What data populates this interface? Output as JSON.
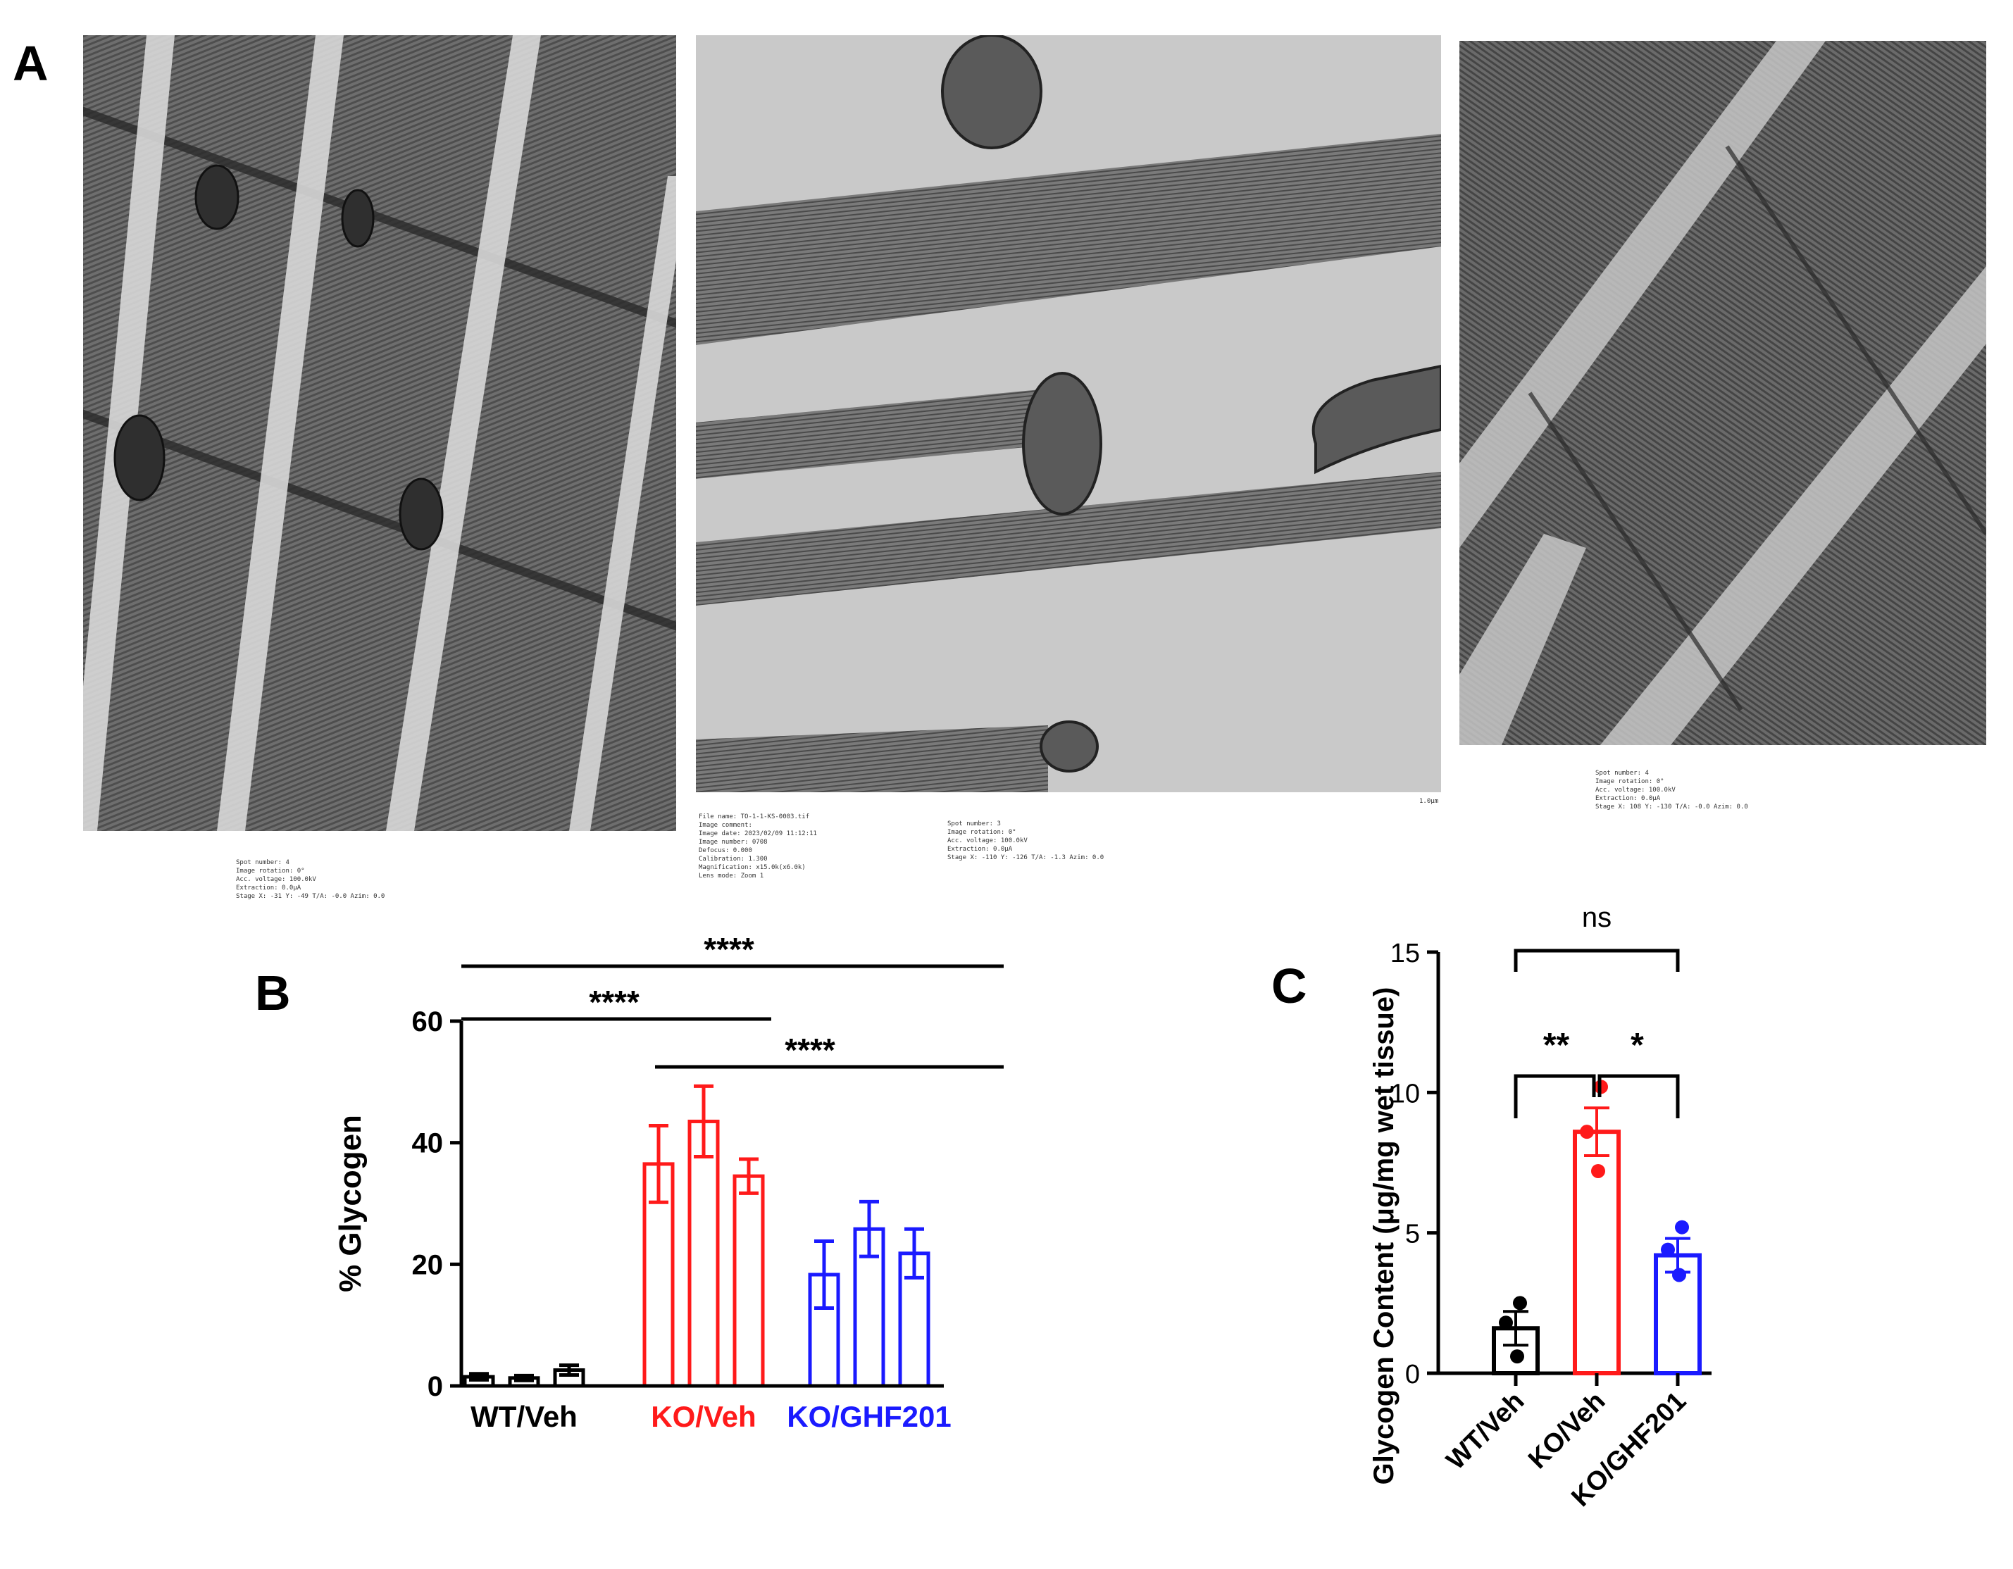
{
  "panel_labels": [
    "A",
    "B",
    "C"
  ],
  "colors": {
    "wt": "#000000",
    "ko": "#ff1a1a",
    "ghf": "#1a1aff"
  },
  "micrographs": [
    {
      "captions": [
        "Spot number: 4",
        "Image rotation: 0°",
        "Acc. voltage: 100.0kV",
        "Extraction: 0.0μA",
        "Stage X: -31 Y: -49 T/A: -0.0 Azim: 0.0"
      ]
    },
    {
      "captions": [
        "File name: TO-1-1-KS-0003.tif",
        "Image comment:",
        "Image date: 2023/02/09 11:12:11",
        "Image number: 0708",
        "Defocus: 0.000",
        "Calibration: 1.300",
        "Magnification: x15.0k(x6.0k)",
        "Lens mode: Zoom 1"
      ],
      "captions2": [
        "Spot number: 3",
        "Image rotation: 0°",
        "Acc. voltage: 100.0kV",
        "Extraction: 0.0μA",
        "Stage X: -110 Y: -126 T/A: -1.3 Azim: 0.0"
      ],
      "scale": "1.0μm"
    },
    {
      "captions": [
        "Spot number: 4",
        "Image rotation: 0°",
        "Acc. voltage: 100.0kV",
        "Extraction: 0.0μA",
        "Stage X: 108 Y: -130 T/A: -0.0 Azim: 0.0"
      ]
    }
  ],
  "chart_data": [
    {
      "type": "bar",
      "panel": "B",
      "ylabel": "% Glycogen",
      "ylim": [
        0,
        60
      ],
      "yticks": [
        0,
        20,
        40,
        60
      ],
      "groups": [
        {
          "label": "WT/Veh",
          "color": "#000000",
          "values": [
            1.5,
            1.3,
            2.6
          ],
          "errors": [
            0.5,
            0.4,
            0.8
          ]
        },
        {
          "label": "KO/Veh",
          "color": "#ff1a1a",
          "values": [
            36.5,
            43.5,
            34.5
          ],
          "errors": [
            6.3,
            5.8,
            2.8
          ]
        },
        {
          "label": "KO/GHF201",
          "color": "#1a1aff",
          "values": [
            18.3,
            25.8,
            21.8
          ],
          "errors": [
            5.5,
            4.5,
            4.0
          ]
        }
      ],
      "significance": [
        {
          "from": 0,
          "to": 2,
          "label": "****"
        },
        {
          "from": 0,
          "to": 1,
          "label": "****"
        },
        {
          "from": 1,
          "to": 2,
          "label": "****"
        }
      ]
    },
    {
      "type": "bar",
      "panel": "C",
      "ylabel": "Glycogen Content (μg/mg wet tissue)",
      "ylim": [
        0,
        15
      ],
      "yticks": [
        0,
        5,
        10,
        15
      ],
      "categories": [
        "WT/Veh",
        "KO/Veh",
        "KO/GHF201"
      ],
      "bars": [
        {
          "label": "WT/Veh",
          "color": "#000000",
          "mean": 1.6,
          "sem": 0.6,
          "points": [
            2.5,
            1.8,
            0.6
          ]
        },
        {
          "label": "KO/Veh",
          "color": "#ff1a1a",
          "mean": 8.6,
          "sem": 0.85,
          "points": [
            10.2,
            8.6,
            7.2
          ]
        },
        {
          "label": "KO/GHF201",
          "color": "#1a1aff",
          "mean": 4.2,
          "sem": 0.6,
          "points": [
            5.2,
            4.4,
            3.5
          ]
        }
      ],
      "significance": [
        {
          "from": 0,
          "to": 2,
          "label": "ns"
        },
        {
          "from": 0,
          "to": 1,
          "label": "**"
        },
        {
          "from": 1,
          "to": 2,
          "label": "*"
        }
      ]
    }
  ]
}
